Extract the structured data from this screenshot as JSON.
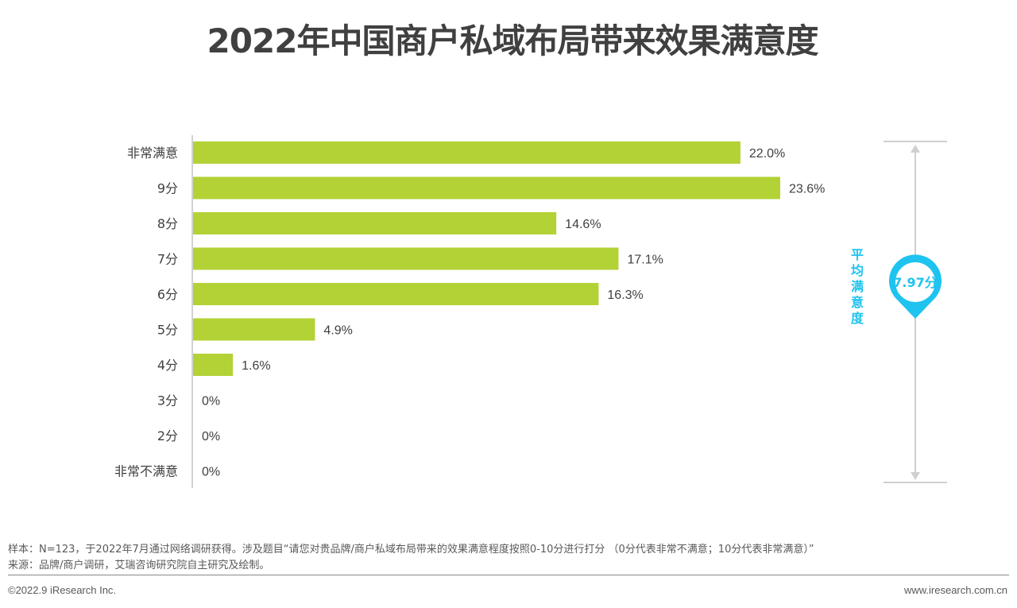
{
  "title": "2022年中国商户私域布局带来效果满意度",
  "chart_data": {
    "type": "bar",
    "orientation": "horizontal",
    "title": "2022年中国商户私域布局带来效果满意度",
    "categories": [
      "非常满意",
      "9分",
      "8分",
      "7分",
      "6分",
      "5分",
      "4分",
      "3分",
      "2分",
      "非常不满意"
    ],
    "values": [
      22.0,
      23.6,
      14.6,
      17.1,
      16.3,
      4.9,
      1.6,
      0,
      0,
      0
    ],
    "labels": [
      "22.0%",
      "23.6%",
      "14.6%",
      "17.1%",
      "16.3%",
      "4.9%",
      "1.6%",
      "0%",
      "0%",
      "0%"
    ],
    "xlim": [
      0,
      23.6
    ],
    "bar_color": "#b2d235",
    "average": {
      "label": "平均满意度",
      "value_label": "7.97分",
      "value": 7.97,
      "color": "#1fc3ef"
    }
  },
  "notes": {
    "sample": "样本：N=123，于2022年7月通过网络调研获得。涉及题目“请您对贵品牌/商户私域布局带来的效果满意程度按照0-10分进行打分 （0分代表非常不满意；10分代表非常满意）”",
    "source": "来源：品牌/商户调研，艾瑞咨询研究院自主研究及绘制。"
  },
  "footer": {
    "copyright": "©2022.9 iResearch Inc.",
    "website": "www.iresearch.com.cn"
  }
}
